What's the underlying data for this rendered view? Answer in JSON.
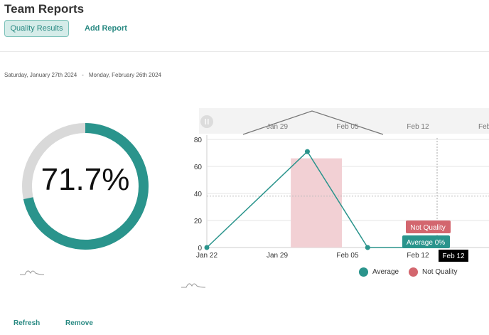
{
  "header": {
    "title": "Team Reports",
    "tabs": [
      {
        "label": "Quality Results",
        "active": true
      },
      {
        "label": "Add Report",
        "active": false
      }
    ]
  },
  "date_range": {
    "start": "Saturday, January 27th 2024",
    "separator": "-",
    "end": "Monday, February 26th 2024"
  },
  "summary": {
    "percent_label": "71.7%",
    "percent_value": 71.7,
    "ring_color": "#2a948c",
    "track_color": "#d9d9d9"
  },
  "navigator": {
    "pause_icon": "pause-icon",
    "tick_labels": [
      "Jan 29",
      "Feb 05",
      "Feb 12",
      "Feb"
    ]
  },
  "chart_data": {
    "type": "line",
    "x": [
      "Jan 22",
      "Jan 29",
      "Feb 05",
      "Feb 12"
    ],
    "x_tick_labels": [
      "Jan 22",
      "Jan 29",
      "Feb 05",
      "Feb 12"
    ],
    "y_ticks": [
      0,
      20,
      40,
      60,
      80
    ],
    "ylim": [
      0,
      80
    ],
    "series": [
      {
        "name": "Average",
        "type": "line",
        "color": "#2a948c",
        "points": [
          [
            "Jan 22",
            0
          ],
          [
            "Feb 01",
            71
          ],
          [
            "Feb 07",
            0
          ],
          [
            "Feb 12",
            0
          ],
          [
            "Feb 14",
            0
          ]
        ]
      },
      {
        "name": "Not Quality",
        "type": "bar",
        "color": "#f2d0d4",
        "bars": [
          {
            "from": "Jan 30",
            "to": "Feb 05",
            "value": 66
          }
        ]
      }
    ],
    "reference_line": 38,
    "crosshair": {
      "x_label": "Feb 12"
    },
    "tooltips": [
      {
        "label": "Not Quality",
        "color": "#d3666e"
      },
      {
        "label": "Average 0%",
        "color": "#2a948c"
      }
    ],
    "legend": [
      "Average",
      "Not Quality"
    ],
    "legend_placement": "bottom"
  },
  "footer": {
    "refresh_label": "Refresh",
    "remove_label": "Remove"
  }
}
